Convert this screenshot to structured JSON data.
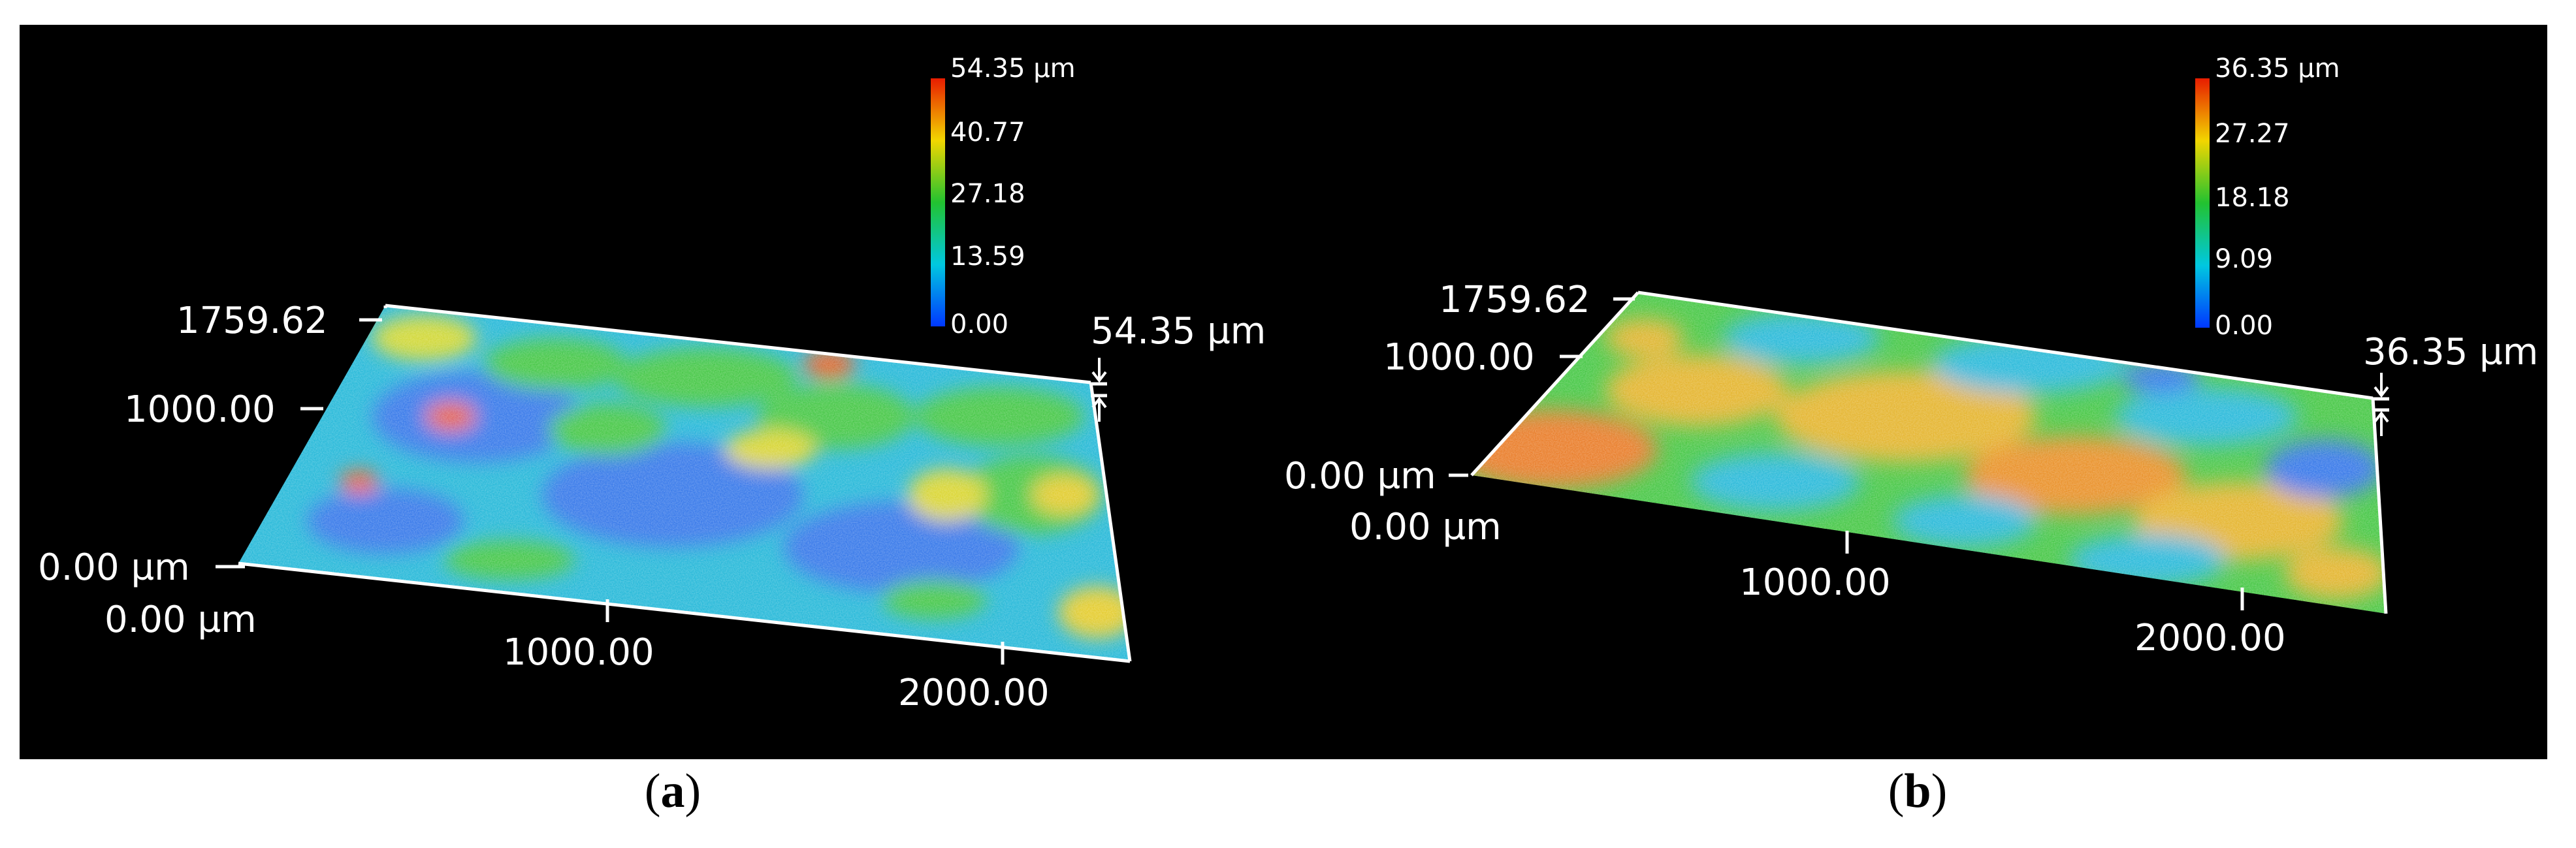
{
  "panels": [
    {
      "caption_letter": "a",
      "colorbar": {
        "max": "54.35 µm",
        "t3": "40.77",
        "t2": "27.18",
        "t1": "13.59",
        "min": "0.00"
      },
      "height_label": "54.35 µm",
      "y_axis": {
        "max": "1759.62",
        "mid": "1000.00",
        "origin": "0.00 µm"
      },
      "x_axis": {
        "origin": "0.00 µm",
        "t1": "1000.00",
        "t2": "2000.00"
      }
    },
    {
      "caption_letter": "b",
      "colorbar": {
        "max": "36.35 µm",
        "t3": "27.27",
        "t2": "18.18",
        "t1": "9.09",
        "min": "0.00"
      },
      "height_label": "36.35 µm",
      "y_axis": {
        "max": "1759.62",
        "mid": "1000.00",
        "origin": "0.00 µm"
      },
      "x_axis": {
        "origin": "0.00 µm",
        "t1": "1000.00",
        "t2": "2000.00"
      }
    }
  ],
  "colors": {
    "low": "#0037ff",
    "mid_low": "#00c8e0",
    "mid": "#22c230",
    "mid_high": "#f2d600",
    "high": "#e81c00"
  }
}
